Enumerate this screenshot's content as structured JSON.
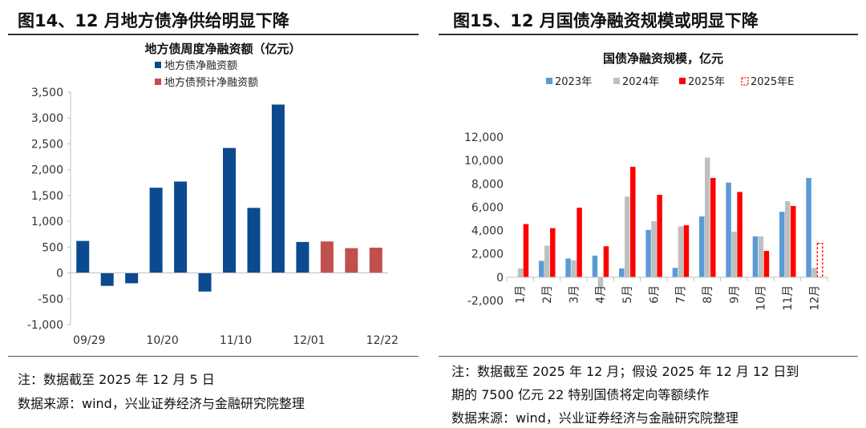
{
  "left": {
    "figure_title": "图14、12 月地方债净供给明显下降",
    "note": "注：数据截至 2025 年 12 月 5 日",
    "source": "数据来源：wind，兴业证券经济与金融研究院整理"
  },
  "right": {
    "figure_title": "图15、12 月国债净融资规模或明显下降",
    "note_line1": "注：数据截至 2025 年 12 月；假设 2025 年 12 月 12 日到",
    "note_line2": "期的 7500 亿元 22 特别国债将定向等额续作",
    "source": "数据来源：wind，兴业证券经济与金融研究院整理"
  },
  "chart_data": [
    {
      "type": "bar",
      "title": "地方债周度净融资额（亿元）",
      "xlabel": "",
      "ylabel": "",
      "ylim": [
        -1000,
        3500
      ],
      "yticks": [
        -1000,
        -500,
        0,
        500,
        1000,
        1500,
        2000,
        2500,
        3000,
        3500
      ],
      "ytick_labels": [
        "-1,000",
        "-500",
        "0",
        "500",
        "1,000",
        "1,500",
        "2,000",
        "2,500",
        "3,000",
        "3,500"
      ],
      "xtick_labels": [
        "09/29",
        "10/20",
        "11/10",
        "12/01",
        "12/22"
      ],
      "legend_position": "top-center",
      "grid": false,
      "series": [
        {
          "name": "地方债净融资额",
          "color": "#0b4a8f",
          "values": [
            620,
            -250,
            -200,
            1650,
            1770,
            -360,
            2420,
            1260,
            3260,
            600,
            null,
            null,
            null
          ]
        },
        {
          "name": "地方债预计净融资额",
          "color": "#c0504d",
          "values": [
            null,
            null,
            null,
            null,
            null,
            null,
            null,
            null,
            null,
            null,
            610,
            480,
            490
          ]
        }
      ]
    },
    {
      "type": "bar",
      "title": "国债净融资规模，亿元",
      "xlabel": "",
      "ylabel": "",
      "ylim": [
        -2000,
        12000
      ],
      "yticks": [
        -2000,
        0,
        2000,
        4000,
        6000,
        8000,
        10000,
        12000
      ],
      "ytick_labels": [
        "-2,000",
        "0",
        "2,000",
        "4,000",
        "6,000",
        "8,000",
        "10,000",
        "12,000"
      ],
      "categories": [
        "1月",
        "2月",
        "3月",
        "4月",
        "5月",
        "6月",
        "7月",
        "8月",
        "9月",
        "10月",
        "11月",
        "12月"
      ],
      "legend_position": "top",
      "grid": false,
      "series": [
        {
          "name": "2023年",
          "color": "#5b9bd5",
          "values": [
            0,
            1400,
            1600,
            1850,
            750,
            4050,
            800,
            5200,
            8100,
            3500,
            5600,
            8500
          ]
        },
        {
          "name": "2024年",
          "color": "#bfbfbf",
          "values": [
            750,
            2700,
            1450,
            -950,
            6900,
            4800,
            4350,
            10250,
            3900,
            3500,
            6500,
            800
          ]
        },
        {
          "name": "2025年",
          "color": "#ff0000",
          "values": [
            4550,
            4200,
            5950,
            2650,
            9450,
            7050,
            4450,
            8500,
            7300,
            2250,
            6100,
            null
          ]
        },
        {
          "name": "2025年E",
          "color": "#ff0000",
          "style": "dashed-outline",
          "values": [
            null,
            null,
            null,
            null,
            null,
            null,
            null,
            null,
            null,
            null,
            null,
            2900
          ]
        }
      ]
    }
  ]
}
